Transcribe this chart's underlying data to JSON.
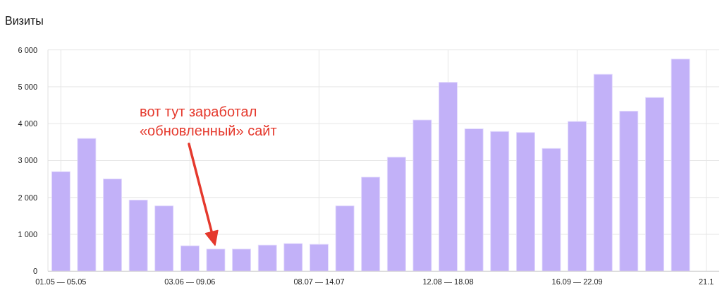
{
  "chart_data": {
    "type": "bar",
    "title": "Визиты",
    "categories": [
      "01.05 — 05.05",
      null,
      null,
      null,
      null,
      "03.06 — 09.06",
      null,
      null,
      null,
      null,
      "08.07 — 14.07",
      null,
      null,
      null,
      null,
      "12.08 — 18.08",
      null,
      null,
      null,
      null,
      "16.09 — 22.09",
      null,
      null,
      null,
      null,
      "21.1"
    ],
    "values": [
      2700,
      3600,
      2500,
      1930,
      1770,
      690,
      600,
      600,
      710,
      750,
      730,
      1770,
      2550,
      3090,
      4100,
      5120,
      3860,
      3790,
      3760,
      3330,
      4060,
      5340,
      4340,
      4710,
      5750,
      null
    ],
    "color": "#c2b1f8",
    "ylim": [
      0,
      6000
    ],
    "yticks": [
      0,
      {
        "value": 1000,
        "label": "1 000"
      },
      {
        "value": 2000,
        "label": "2 000"
      },
      {
        "value": 3000,
        "label": "3 000"
      },
      {
        "value": 4000,
        "label": "4 000"
      },
      {
        "value": 5000,
        "label": "5 000"
      },
      {
        "value": 6000,
        "label": "6 000"
      }
    ],
    "grid": true,
    "annotations": [
      "вот тут заработал\n«обновленный» сайт"
    ]
  }
}
